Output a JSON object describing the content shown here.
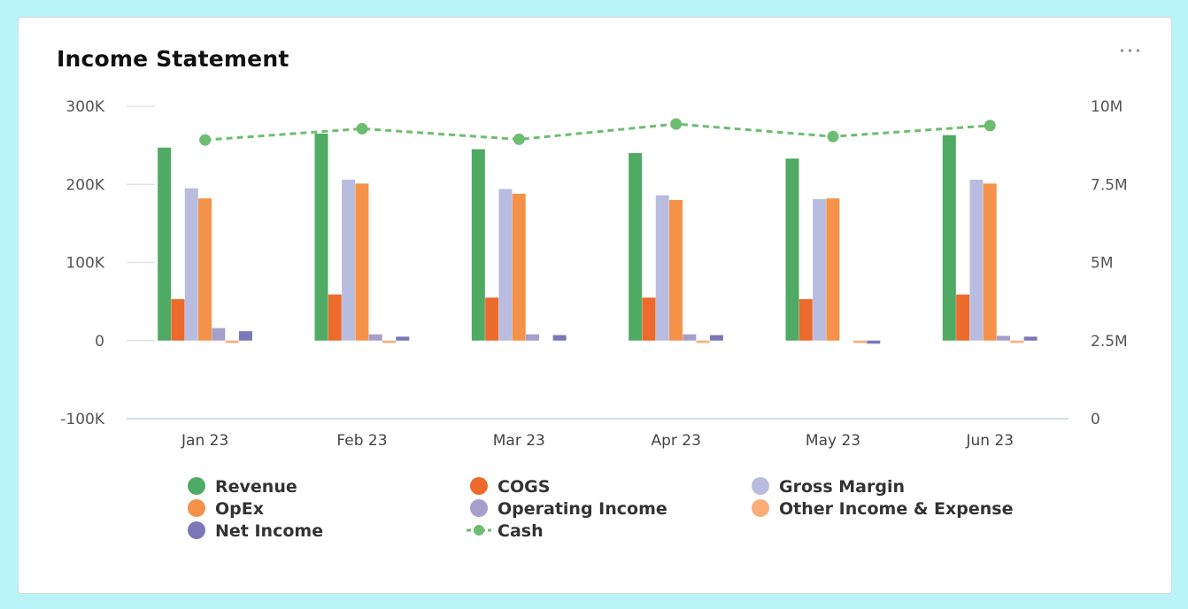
{
  "card": {
    "title": "Income Statement",
    "menu_label": "···"
  },
  "chart_data": {
    "type": "bar",
    "title": "Income Statement",
    "categories": [
      "Jan 23",
      "Feb 23",
      "Mar 23",
      "Apr 23",
      "May 23",
      "Jun 23"
    ],
    "left_axis": {
      "ylim": [
        -100000,
        300000
      ],
      "ticks": [
        300000,
        200000,
        100000,
        0,
        -100000
      ],
      "tick_labels": [
        "300K",
        "200K",
        "100K",
        "0",
        "-100K"
      ]
    },
    "right_axis": {
      "ylim": [
        0,
        10000000
      ],
      "ticks": [
        10000000,
        7500000,
        5000000,
        2500000,
        0
      ],
      "tick_labels": [
        "10M",
        "7.5M",
        "5M",
        "2.5M",
        "0"
      ]
    },
    "series": [
      {
        "name": "Revenue",
        "kind": "bar",
        "axis": "left",
        "color": "#4faa64",
        "values": [
          247000,
          265000,
          245000,
          240000,
          233000,
          263000
        ]
      },
      {
        "name": "COGS",
        "kind": "bar",
        "axis": "left",
        "color": "#eb6a2c",
        "values": [
          53000,
          59000,
          55000,
          55000,
          53000,
          59000
        ]
      },
      {
        "name": "Gross Margin",
        "kind": "bar",
        "axis": "left",
        "color": "#b8bcde",
        "values": [
          195000,
          206000,
          194000,
          186000,
          181000,
          206000
        ]
      },
      {
        "name": "OpEx",
        "kind": "bar",
        "axis": "left",
        "color": "#f59249",
        "values": [
          182000,
          201000,
          188000,
          180000,
          182000,
          201000
        ]
      },
      {
        "name": "Operating Income",
        "kind": "bar",
        "axis": "left",
        "color": "#a59fcb",
        "values": [
          16000,
          8000,
          8000,
          8000,
          0,
          6000
        ]
      },
      {
        "name": "Other Income & Expense",
        "kind": "bar",
        "axis": "left",
        "color": "#f9ad78",
        "values": [
          -3000,
          -3000,
          0,
          -3000,
          -3000,
          -3000
        ]
      },
      {
        "name": "Net Income",
        "kind": "bar",
        "axis": "left",
        "color": "#7b78b8",
        "values": [
          12000,
          5000,
          7000,
          7000,
          -4000,
          5000
        ]
      },
      {
        "name": "Cash",
        "kind": "line",
        "axis": "right",
        "color": "#6dbd70",
        "dashed": true,
        "values": [
          8920000,
          9280000,
          8940000,
          9430000,
          9030000,
          9380000
        ]
      }
    ],
    "legend": [
      "Revenue",
      "COGS",
      "Gross Margin",
      "OpEx",
      "Operating Income",
      "Other Income & Expense",
      "Net Income",
      "Cash"
    ]
  }
}
